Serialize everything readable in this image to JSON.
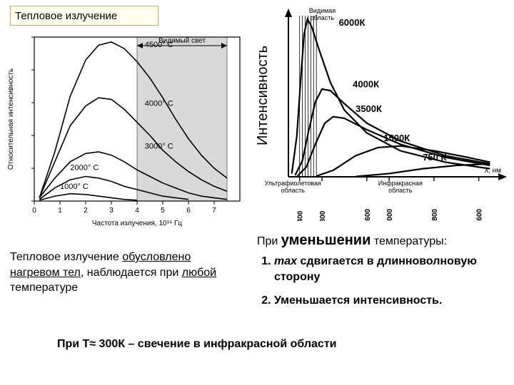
{
  "title": "Тепловое излучение",
  "leftChart": {
    "type": "line",
    "bg": "#ffffff",
    "axis_color": "#000000",
    "grid_color": "#d0d0d0",
    "font": 10,
    "xlabel": "Частота излучения, 10¹⁴ Гц",
    "ylabel": "Относительная интенсивность",
    "xlim": [
      0,
      8
    ],
    "xticks": [
      0,
      1,
      2,
      3,
      4,
      5,
      6,
      7
    ],
    "visible_band": {
      "from": 4.0,
      "to": 7.5,
      "fill": "#d9d9d9",
      "label": "Видимый свет"
    },
    "curves": [
      {
        "label": "4500° C",
        "label_xy": [
          4.3,
          0.94
        ],
        "pts": [
          [
            0.2,
            0.02
          ],
          [
            0.8,
            0.3
          ],
          [
            1.4,
            0.64
          ],
          [
            2.0,
            0.86
          ],
          [
            2.5,
            0.95
          ],
          [
            3.0,
            0.97
          ],
          [
            3.5,
            0.93
          ],
          [
            4.0,
            0.85
          ],
          [
            4.5,
            0.75
          ],
          [
            5.0,
            0.63
          ],
          [
            5.5,
            0.5
          ],
          [
            6.0,
            0.38
          ],
          [
            6.5,
            0.28
          ],
          [
            7.0,
            0.2
          ],
          [
            7.5,
            0.14
          ]
        ]
      },
      {
        "label": "4000° C",
        "label_xy": [
          4.3,
          0.58
        ],
        "pts": [
          [
            0.2,
            0.02
          ],
          [
            0.8,
            0.24
          ],
          [
            1.4,
            0.46
          ],
          [
            2.0,
            0.58
          ],
          [
            2.5,
            0.63
          ],
          [
            3.0,
            0.62
          ],
          [
            3.5,
            0.56
          ],
          [
            4.0,
            0.48
          ],
          [
            4.5,
            0.4
          ],
          [
            5.0,
            0.31
          ],
          [
            5.5,
            0.24
          ],
          [
            6.0,
            0.18
          ],
          [
            6.5,
            0.13
          ],
          [
            7.0,
            0.09
          ],
          [
            7.5,
            0.06
          ]
        ]
      },
      {
        "label": "3000° C",
        "label_xy": [
          4.3,
          0.32
        ],
        "pts": [
          [
            0.2,
            0.02
          ],
          [
            0.8,
            0.14
          ],
          [
            1.4,
            0.24
          ],
          [
            2.0,
            0.29
          ],
          [
            2.5,
            0.3
          ],
          [
            3.0,
            0.28
          ],
          [
            3.5,
            0.24
          ],
          [
            4.0,
            0.19
          ],
          [
            4.5,
            0.15
          ],
          [
            5.0,
            0.11
          ],
          [
            5.5,
            0.08
          ],
          [
            6.0,
            0.05
          ],
          [
            6.5,
            0.03
          ],
          [
            7.0,
            0.02
          ],
          [
            7.5,
            0.01
          ]
        ]
      },
      {
        "label": "2000° C",
        "label_xy": [
          1.4,
          0.19
        ],
        "pts": [
          [
            0.2,
            0.01
          ],
          [
            0.8,
            0.08
          ],
          [
            1.4,
            0.13
          ],
          [
            2.0,
            0.15
          ],
          [
            2.5,
            0.14
          ],
          [
            3.0,
            0.12
          ],
          [
            3.5,
            0.09
          ],
          [
            4.0,
            0.07
          ],
          [
            4.5,
            0.05
          ],
          [
            5.0,
            0.03
          ],
          [
            5.5,
            0.02
          ],
          [
            6.0,
            0.01
          ]
        ]
      },
      {
        "label": "1000° C",
        "label_xy": [
          1.0,
          0.075
        ],
        "pts": [
          [
            0.2,
            0.005
          ],
          [
            0.8,
            0.03
          ],
          [
            1.4,
            0.045
          ],
          [
            2.0,
            0.04
          ],
          [
            2.5,
            0.03
          ],
          [
            3.0,
            0.02
          ],
          [
            3.5,
            0.01
          ],
          [
            4.0,
            0.005
          ]
        ]
      }
    ],
    "line_width": 1.6
  },
  "rightChart": {
    "type": "line",
    "bg": "#ffffff",
    "axis_color": "#000000",
    "font": 10,
    "xlabel": "λ, нм",
    "ylabel": "Интенсивность",
    "xlim": [
      200,
      4000
    ],
    "xticks": [
      400,
      800,
      1600,
      2000,
      2800,
      3600
    ],
    "visible_band": {
      "from": 400,
      "to": 700,
      "label_top": "Видимая\nобласть"
    },
    "region_labels": [
      {
        "text": "Ультрафиолетовая область",
        "x": 280,
        "small": true
      },
      {
        "text": "Инфракрасная область",
        "x": 2200,
        "small": true
      }
    ],
    "curves": [
      {
        "label": "6000К",
        "label_xy": [
          1100,
          0.93
        ],
        "pts": [
          [
            260,
            0.02
          ],
          [
            350,
            0.25
          ],
          [
            420,
            0.6
          ],
          [
            480,
            0.88
          ],
          [
            540,
            0.97
          ],
          [
            620,
            0.92
          ],
          [
            750,
            0.78
          ],
          [
            950,
            0.58
          ],
          [
            1200,
            0.41
          ],
          [
            1600,
            0.27
          ],
          [
            2200,
            0.16
          ],
          [
            3000,
            0.09
          ],
          [
            3800,
            0.05
          ]
        ]
      },
      {
        "label": "4000К",
        "label_xy": [
          1350,
          0.55
        ],
        "pts": [
          [
            320,
            0.01
          ],
          [
            450,
            0.1
          ],
          [
            560,
            0.28
          ],
          [
            680,
            0.46
          ],
          [
            800,
            0.54
          ],
          [
            950,
            0.53
          ],
          [
            1200,
            0.45
          ],
          [
            1600,
            0.33
          ],
          [
            2200,
            0.22
          ],
          [
            3000,
            0.13
          ],
          [
            3800,
            0.08
          ]
        ]
      },
      {
        "label": "3500К",
        "label_xy": [
          1400,
          0.4
        ],
        "pts": [
          [
            360,
            0.005
          ],
          [
            520,
            0.06
          ],
          [
            680,
            0.2
          ],
          [
            850,
            0.33
          ],
          [
            1000,
            0.37
          ],
          [
            1200,
            0.36
          ],
          [
            1600,
            0.29
          ],
          [
            2200,
            0.2
          ],
          [
            3000,
            0.12
          ],
          [
            3800,
            0.07
          ]
        ]
      },
      {
        "label": "1500К",
        "label_xy": [
          1900,
          0.22
        ],
        "pts": [
          [
            700,
            0.005
          ],
          [
            1000,
            0.04
          ],
          [
            1400,
            0.13
          ],
          [
            1800,
            0.18
          ],
          [
            2200,
            0.19
          ],
          [
            2800,
            0.16
          ],
          [
            3400,
            0.12
          ],
          [
            3800,
            0.09
          ]
        ]
      },
      {
        "label": "750 К",
        "label_xy": [
          2600,
          0.1
        ],
        "pts": [
          [
            1400,
            0.002
          ],
          [
            2000,
            0.02
          ],
          [
            2600,
            0.05
          ],
          [
            3200,
            0.07
          ],
          [
            3800,
            0.08
          ]
        ]
      }
    ],
    "line_width": 2.2
  },
  "paraLeft": {
    "prefix": "Тепловое излучение ",
    "u1": "обусловлено нагревом тел",
    "mid": ",  наблюдается при ",
    "u2": "любой",
    "suffix": " температуре"
  },
  "rightHead": {
    "pre": "При ",
    "big": "уменьшении",
    "post": " температуры:"
  },
  "rightList": [
    {
      "n": "1.",
      "b1": "max",
      "t": " сдвигается в длинноволновую сторону"
    },
    {
      "n": "2.",
      "t": "Уменьшается интенсивность."
    }
  ],
  "bottom": "При Т≈ 300К – свечение в инфракрасной области"
}
